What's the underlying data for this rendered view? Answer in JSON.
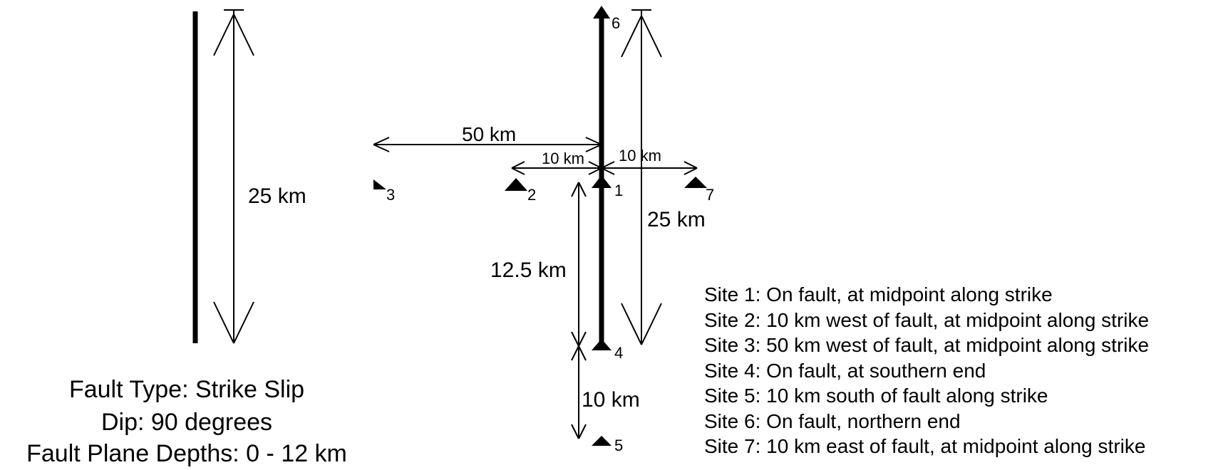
{
  "fault_info": {
    "type_line": "Fault Type: Strike Slip",
    "dip_line": "Dip:  90 degrees",
    "depth_line": "Fault Plane Depths: 0 - 12 km"
  },
  "dimensions": {
    "left_fault_length": "25 km",
    "west_far": "50 km",
    "west_near": "10 km",
    "east_near": "10 km",
    "right_fault_length": "25 km",
    "half_length": "12.5 km",
    "south_offset": "10 km"
  },
  "sites": [
    {
      "number": "1",
      "description": "Site 1:  On fault, at midpoint along strike"
    },
    {
      "number": "2",
      "description": "Site 2:  10 km west of fault, at midpoint along strike"
    },
    {
      "number": "3",
      "description": "Site 3:  50 km west of fault, at midpoint along strike"
    },
    {
      "number": "4",
      "description": "Site 4:  On fault, at southern end"
    },
    {
      "number": "5",
      "description": "Site 5:  10 km south of fault along strike"
    },
    {
      "number": "6",
      "description": "Site 6:  On fault, northern end"
    },
    {
      "number": "7",
      "description": "Site 7:  10 km east of fault, at midpoint along strike"
    }
  ],
  "colors": {
    "ink": "#000000",
    "background": "#ffffff"
  }
}
